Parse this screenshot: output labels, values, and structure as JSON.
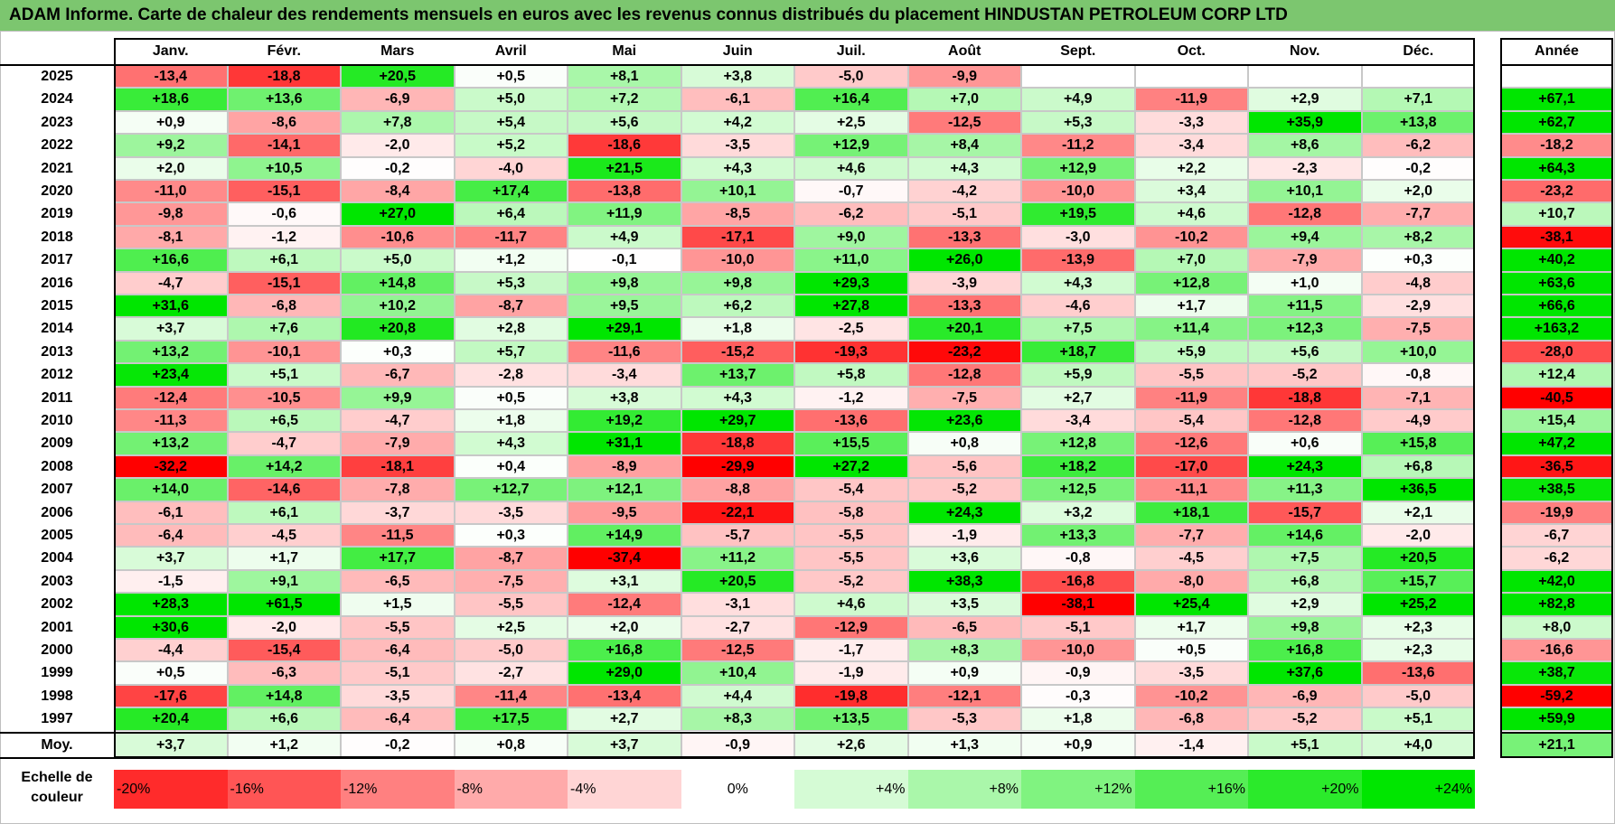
{
  "title": "ADAM Informe. Carte de chaleur des rendements mensuels en euros avec les revenus connus distribués du placement HINDUSTAN PETROLEUM CORP LTD",
  "chart_data": {
    "type": "heatmap",
    "months": [
      "Janv.",
      "Févr.",
      "Mars",
      "Avril",
      "Mai",
      "Juin",
      "Juil.",
      "Août",
      "Sept.",
      "Oct.",
      "Nov.",
      "Déc."
    ],
    "annual_header": "Année",
    "rows": [
      {
        "year": "2025",
        "values": [
          "-13,4",
          "-18,8",
          "+20,5",
          "+0,5",
          "+8,1",
          "+3,8",
          "-5,0",
          "-9,9",
          "",
          "",
          "",
          ""
        ],
        "annual": ""
      },
      {
        "year": "2024",
        "values": [
          "+18,6",
          "+13,6",
          "-6,9",
          "+5,0",
          "+7,2",
          "-6,1",
          "+16,4",
          "+7,0",
          "+4,9",
          "-11,9",
          "+2,9",
          "+7,1"
        ],
        "annual": "+67,1"
      },
      {
        "year": "2023",
        "values": [
          "+0,9",
          "-8,6",
          "+7,8",
          "+5,4",
          "+5,6",
          "+4,2",
          "+2,5",
          "-12,5",
          "+5,3",
          "-3,3",
          "+35,9",
          "+13,8"
        ],
        "annual": "+62,7"
      },
      {
        "year": "2022",
        "values": [
          "+9,2",
          "-14,1",
          "-2,0",
          "+5,2",
          "-18,6",
          "-3,5",
          "+12,9",
          "+8,4",
          "-11,2",
          "-3,4",
          "+8,6",
          "-6,2"
        ],
        "annual": "-18,2"
      },
      {
        "year": "2021",
        "values": [
          "+2,0",
          "+10,5",
          "-0,2",
          "-4,0",
          "+21,5",
          "+4,3",
          "+4,6",
          "+4,3",
          "+12,9",
          "+2,2",
          "-2,3",
          "-0,2"
        ],
        "annual": "+64,3"
      },
      {
        "year": "2020",
        "values": [
          "-11,0",
          "-15,1",
          "-8,4",
          "+17,4",
          "-13,8",
          "+10,1",
          "-0,7",
          "-4,2",
          "-10,0",
          "+3,4",
          "+10,1",
          "+2,0"
        ],
        "annual": "-23,2"
      },
      {
        "year": "2019",
        "values": [
          "-9,8",
          "-0,6",
          "+27,0",
          "+6,4",
          "+11,9",
          "-8,5",
          "-6,2",
          "-5,1",
          "+19,5",
          "+4,6",
          "-12,8",
          "-7,7"
        ],
        "annual": "+10,7"
      },
      {
        "year": "2018",
        "values": [
          "-8,1",
          "-1,2",
          "-10,6",
          "-11,7",
          "+4,9",
          "-17,1",
          "+9,0",
          "-13,3",
          "-3,0",
          "-10,2",
          "+9,4",
          "+8,2"
        ],
        "annual": "-38,1"
      },
      {
        "year": "2017",
        "values": [
          "+16,6",
          "+6,1",
          "+5,0",
          "+1,2",
          "-0,1",
          "-10,0",
          "+11,0",
          "+26,0",
          "-13,9",
          "+7,0",
          "-7,9",
          "+0,3"
        ],
        "annual": "+40,2"
      },
      {
        "year": "2016",
        "values": [
          "-4,7",
          "-15,1",
          "+14,8",
          "+5,3",
          "+9,8",
          "+9,8",
          "+29,3",
          "-3,9",
          "+4,3",
          "+12,8",
          "+1,0",
          "-4,8"
        ],
        "annual": "+63,6"
      },
      {
        "year": "2015",
        "values": [
          "+31,6",
          "-6,8",
          "+10,2",
          "-8,7",
          "+9,5",
          "+6,2",
          "+27,8",
          "-13,3",
          "-4,6",
          "+1,7",
          "+11,5",
          "-2,9"
        ],
        "annual": "+66,6"
      },
      {
        "year": "2014",
        "values": [
          "+3,7",
          "+7,6",
          "+20,8",
          "+2,8",
          "+29,1",
          "+1,8",
          "-2,5",
          "+20,1",
          "+7,5",
          "+11,4",
          "+12,3",
          "-7,5"
        ],
        "annual": "+163,2"
      },
      {
        "year": "2013",
        "values": [
          "+13,2",
          "-10,1",
          "+0,3",
          "+5,7",
          "-11,6",
          "-15,2",
          "-19,3",
          "-23,2",
          "+18,7",
          "+5,9",
          "+5,6",
          "+10,0"
        ],
        "annual": "-28,0"
      },
      {
        "year": "2012",
        "values": [
          "+23,4",
          "+5,1",
          "-6,7",
          "-2,8",
          "-3,4",
          "+13,7",
          "+5,8",
          "-12,8",
          "+5,9",
          "-5,5",
          "-5,2",
          "-0,8"
        ],
        "annual": "+12,4"
      },
      {
        "year": "2011",
        "values": [
          "-12,4",
          "-10,5",
          "+9,9",
          "+0,5",
          "+3,8",
          "+4,3",
          "-1,2",
          "-7,5",
          "+2,7",
          "-11,9",
          "-18,8",
          "-7,1"
        ],
        "annual": "-40,5"
      },
      {
        "year": "2010",
        "values": [
          "-11,3",
          "+6,5",
          "-4,7",
          "+1,8",
          "+19,2",
          "+29,7",
          "-13,6",
          "+23,6",
          "-3,4",
          "-5,4",
          "-12,8",
          "-4,9"
        ],
        "annual": "+15,4"
      },
      {
        "year": "2009",
        "values": [
          "+13,2",
          "-4,7",
          "-7,9",
          "+4,3",
          "+31,1",
          "-18,8",
          "+15,5",
          "+0,8",
          "+12,8",
          "-12,6",
          "+0,6",
          "+15,8"
        ],
        "annual": "+47,2"
      },
      {
        "year": "2008",
        "values": [
          "-32,2",
          "+14,2",
          "-18,1",
          "+0,4",
          "-8,9",
          "-29,9",
          "+27,2",
          "-5,6",
          "+18,2",
          "-17,0",
          "+24,3",
          "+6,8"
        ],
        "annual": "-36,5"
      },
      {
        "year": "2007",
        "values": [
          "+14,0",
          "-14,6",
          "-7,8",
          "+12,7",
          "+12,1",
          "-8,8",
          "-5,4",
          "-5,2",
          "+12,5",
          "-11,1",
          "+11,3",
          "+36,5"
        ],
        "annual": "+38,5"
      },
      {
        "year": "2006",
        "values": [
          "-6,1",
          "+6,1",
          "-3,7",
          "-3,5",
          "-9,5",
          "-22,1",
          "-5,8",
          "+24,3",
          "+3,2",
          "+18,1",
          "-15,7",
          "+2,1"
        ],
        "annual": "-19,9"
      },
      {
        "year": "2005",
        "values": [
          "-6,4",
          "-4,5",
          "-11,5",
          "+0,3",
          "+14,9",
          "-5,7",
          "-5,5",
          "-1,9",
          "+13,3",
          "-7,7",
          "+14,6",
          "-2,0"
        ],
        "annual": "-6,7"
      },
      {
        "year": "2004",
        "values": [
          "+3,7",
          "+1,7",
          "+17,7",
          "-8,7",
          "-37,4",
          "+11,2",
          "-5,5",
          "+3,6",
          "-0,8",
          "-4,5",
          "+7,5",
          "+20,5"
        ],
        "annual": "-6,2"
      },
      {
        "year": "2003",
        "values": [
          "-1,5",
          "+9,1",
          "-6,5",
          "-7,5",
          "+3,1",
          "+20,5",
          "-5,2",
          "+38,3",
          "-16,8",
          "-8,0",
          "+6,8",
          "+15,7"
        ],
        "annual": "+42,0"
      },
      {
        "year": "2002",
        "values": [
          "+28,3",
          "+61,5",
          "+1,5",
          "-5,5",
          "-12,4",
          "-3,1",
          "+4,6",
          "+3,5",
          "-38,1",
          "+25,4",
          "+2,9",
          "+25,2"
        ],
        "annual": "+82,8"
      },
      {
        "year": "2001",
        "values": [
          "+30,6",
          "-2,0",
          "-5,5",
          "+2,5",
          "+2,0",
          "-2,7",
          "-12,9",
          "-6,5",
          "-5,1",
          "+1,7",
          "+9,8",
          "+2,3"
        ],
        "annual": "+8,0"
      },
      {
        "year": "2000",
        "values": [
          "-4,4",
          "-15,4",
          "-6,4",
          "-5,0",
          "+16,8",
          "-12,5",
          "-1,7",
          "+8,3",
          "-10,0",
          "+0,5",
          "+16,8",
          "+2,3"
        ],
        "annual": "-16,6"
      },
      {
        "year": "1999",
        "values": [
          "+0,5",
          "-6,3",
          "-5,1",
          "-2,7",
          "+29,0",
          "+10,4",
          "-1,9",
          "+0,9",
          "-0,9",
          "-3,5",
          "+37,6",
          "-13,6"
        ],
        "annual": "+38,7"
      },
      {
        "year": "1998",
        "values": [
          "-17,6",
          "+14,8",
          "-3,5",
          "-11,4",
          "-13,4",
          "+4,4",
          "-19,8",
          "-12,1",
          "-0,3",
          "-10,2",
          "-6,9",
          "-5,0"
        ],
        "annual": "-59,2"
      },
      {
        "year": "1997",
        "values": [
          "+20,4",
          "+6,6",
          "-6,4",
          "+17,5",
          "+2,7",
          "+8,3",
          "+13,5",
          "-5,3",
          "+1,8",
          "-6,8",
          "-5,2",
          "+5,1"
        ],
        "annual": "+59,9"
      }
    ],
    "average": {
      "label": "Moy.",
      "values": [
        "+3,7",
        "+1,2",
        "-0,2",
        "+0,8",
        "+3,7",
        "-0,9",
        "+2,6",
        "+1,3",
        "+0,9",
        "-1,4",
        "+5,1",
        "+4,0"
      ],
      "annual": "+21,1"
    },
    "scale": {
      "label_line1": "Echelle de",
      "label_line2": "couleur",
      "steps": [
        {
          "text": "-20%",
          "value": -20,
          "align": "left"
        },
        {
          "text": "-16%",
          "value": -16,
          "align": "left"
        },
        {
          "text": "-12%",
          "value": -12,
          "align": "left"
        },
        {
          "text": "-8%",
          "value": -8,
          "align": "left"
        },
        {
          "text": "-4%",
          "value": -4,
          "align": "left"
        },
        {
          "text": "0%",
          "value": 0,
          "align": "center"
        },
        {
          "text": "+4%",
          "value": 4,
          "align": "right"
        },
        {
          "text": "+8%",
          "value": 8,
          "align": "right"
        },
        {
          "text": "+12%",
          "value": 12,
          "align": "right"
        },
        {
          "text": "+16%",
          "value": 16,
          "align": "right"
        },
        {
          "text": "+20%",
          "value": 20,
          "align": "right"
        },
        {
          "text": "+24%",
          "value": 24,
          "align": "right"
        }
      ]
    },
    "colors": {
      "negative": "#ff0000",
      "zero": "#ffffff",
      "positive": "#00e600",
      "title_bg": "#7cc66f"
    }
  }
}
